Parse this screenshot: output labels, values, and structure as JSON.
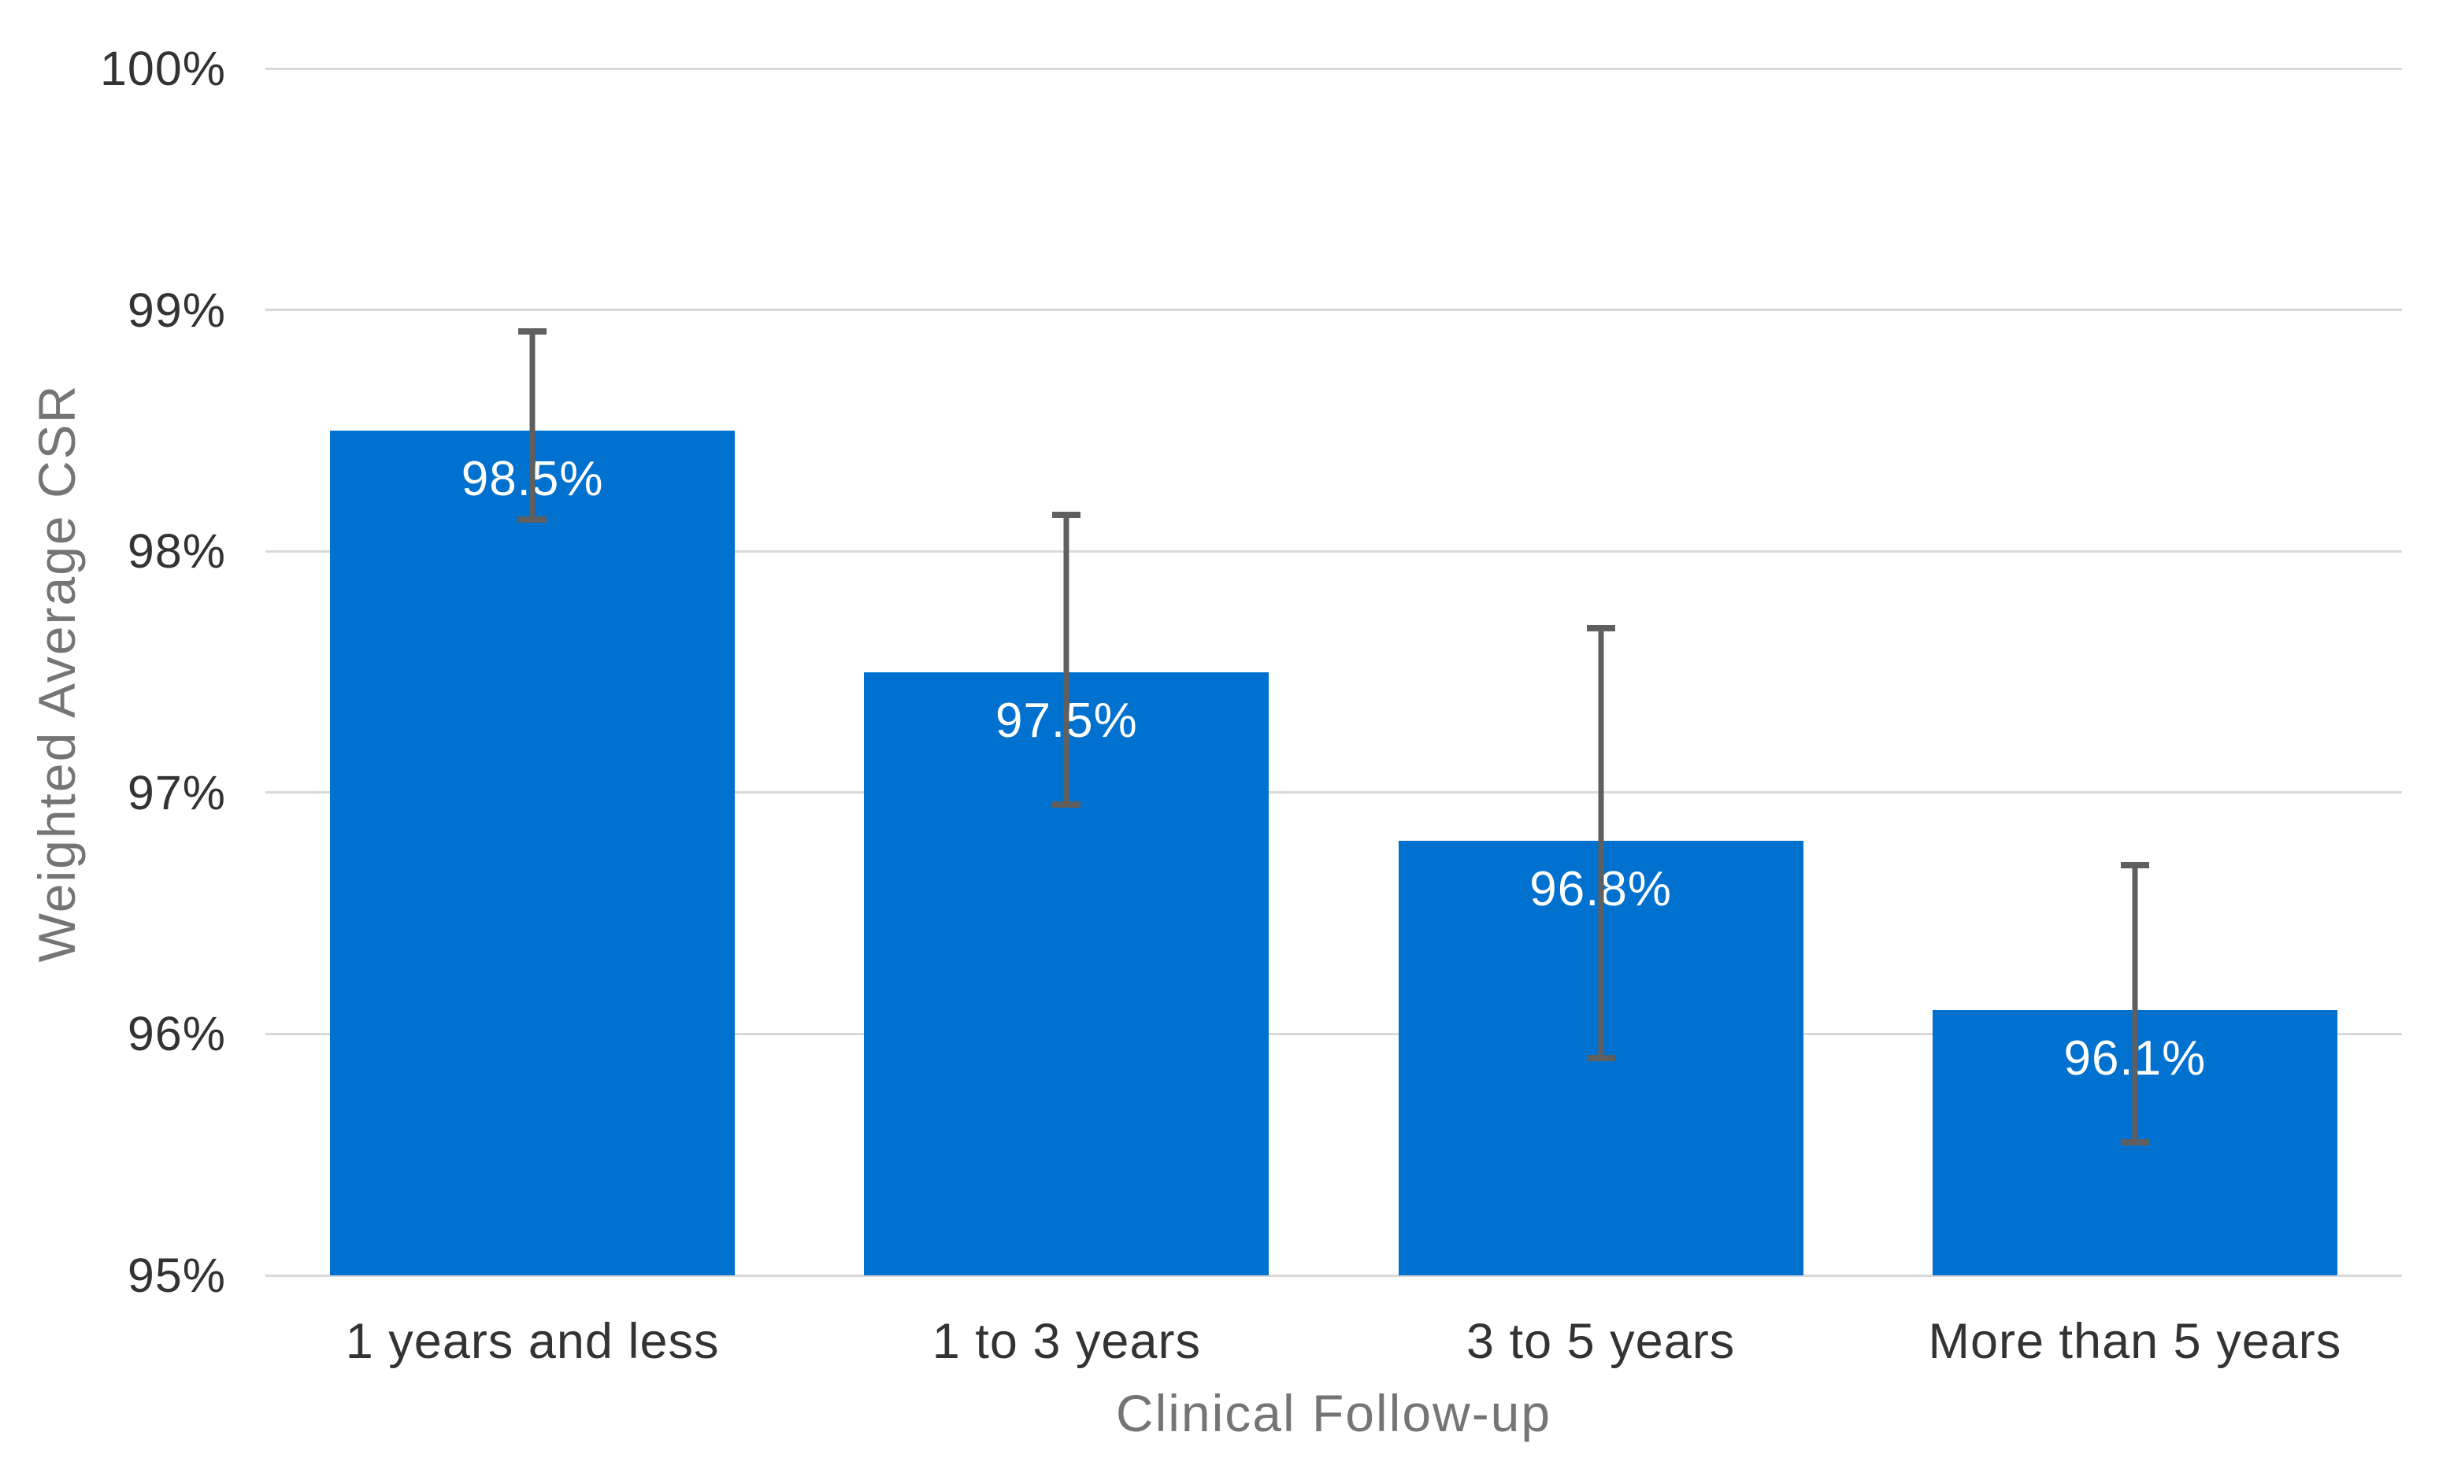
{
  "chart_data": {
    "type": "bar",
    "title": "",
    "xlabel": "Clinical Follow-up",
    "ylabel": "Weighted Average CSR",
    "categories": [
      "1 years and less",
      "1 to 3 years",
      "3 to 5 years",
      "More than 5 years"
    ],
    "values": [
      98.5,
      97.5,
      96.8,
      96.1
    ],
    "value_labels": [
      "98.5%",
      "97.5%",
      "96.8%",
      "96.1%"
    ],
    "error_bars": [
      {
        "low": 98.13,
        "high": 98.91
      },
      {
        "low": 96.95,
        "high": 98.15
      },
      {
        "low": 95.9,
        "high": 97.68
      },
      {
        "low": 95.55,
        "high": 96.7
      }
    ],
    "ylim": [
      95,
      100
    ],
    "yticks": [
      95,
      96,
      97,
      98,
      99,
      100
    ],
    "ytick_labels": [
      "95%",
      "96%",
      "97%",
      "98%",
      "99%",
      "100%"
    ],
    "grid": true,
    "legend": false,
    "colors": {
      "bar": "#0071CE",
      "error_bar": "#5F5F5F",
      "gridline": "#D9D9D9",
      "tick_label": "#333333",
      "axis_title": "#757575",
      "data_label": "#FFFFFF",
      "background": "#FFFFFF"
    }
  }
}
